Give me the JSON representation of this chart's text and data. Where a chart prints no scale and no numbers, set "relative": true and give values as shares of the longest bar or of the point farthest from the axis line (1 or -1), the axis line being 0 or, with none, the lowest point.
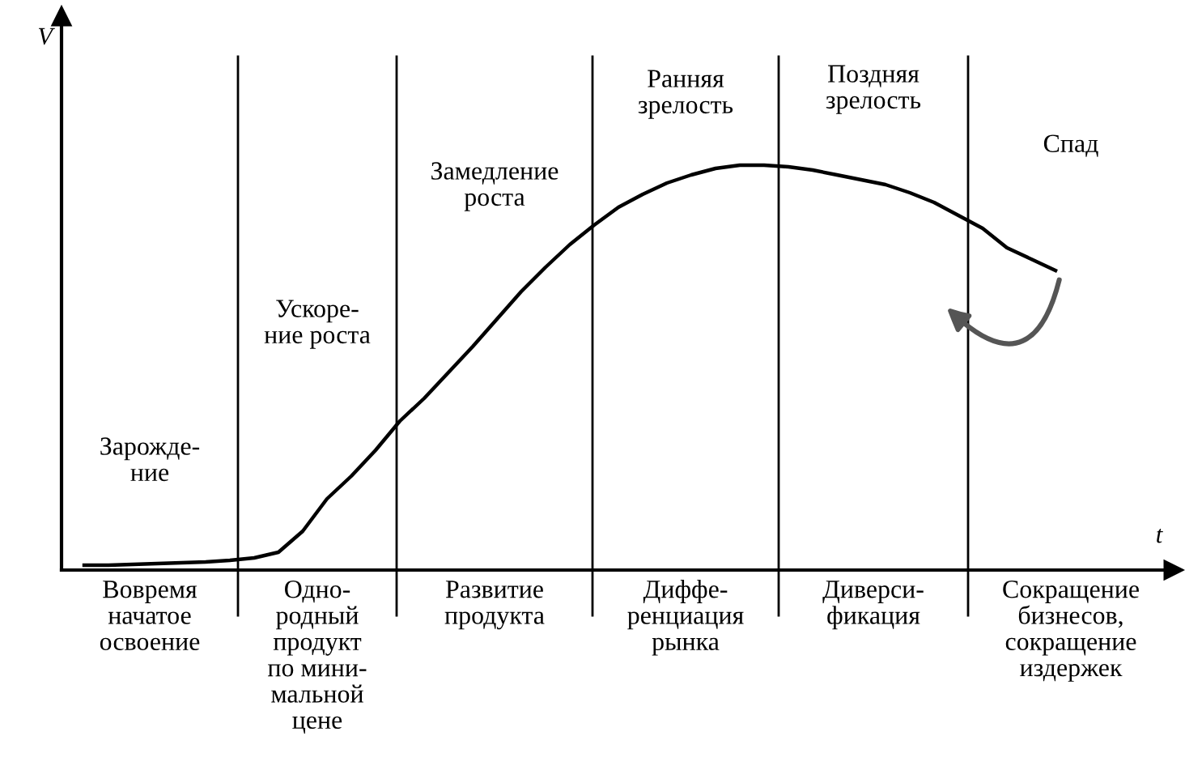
{
  "chart_data": {
    "type": "line",
    "relative": true,
    "xlabel": "t",
    "ylabel": "V",
    "categories": [
      null,
      null,
      null,
      null,
      null,
      null,
      null,
      null,
      null,
      null,
      null,
      null,
      null,
      null,
      null,
      null,
      null,
      null,
      null,
      null,
      null,
      null,
      null,
      null,
      null,
      null,
      null,
      null,
      null,
      null,
      null,
      null,
      null,
      null,
      null,
      null,
      null,
      null,
      null,
      null,
      null
    ],
    "series": [
      {
        "color": "#000000",
        "values": [
          0.012,
          0.012,
          0.014,
          0.016,
          0.018,
          0.02,
          0.024,
          0.03,
          0.044,
          0.096,
          0.176,
          0.232,
          0.296,
          0.368,
          0.424,
          0.488,
          0.552,
          0.62,
          0.688,
          0.748,
          0.804,
          0.852,
          0.896,
          0.928,
          0.956,
          0.976,
          0.992,
          1.0,
          1.0,
          0.996,
          0.988,
          0.976,
          0.964,
          0.952,
          0.932,
          0.908,
          0.876,
          0.844,
          0.796,
          0.768,
          0.74
        ]
      }
    ],
    "annotations": [
      "Зарожде-\nние",
      "Ускоре-\nние роста",
      "Замедление\nроста",
      "Ранняя\nзрелость",
      "Поздняя\nзрелость",
      "Спад",
      "Вовремя\nначатое\nосвоение",
      "Одно-\nродный\nпродукт\nпо мини-\nмальной\nцене",
      "Развитие\nпродукта",
      "Диффе-\nренциация\nрынка",
      "Диверси-\nфикация",
      "Сокращение\nбизнесов,\nсокращение\nиздержек"
    ],
    "grid": false,
    "legend": false,
    "marker": "none",
    "line_style": "solid"
  }
}
